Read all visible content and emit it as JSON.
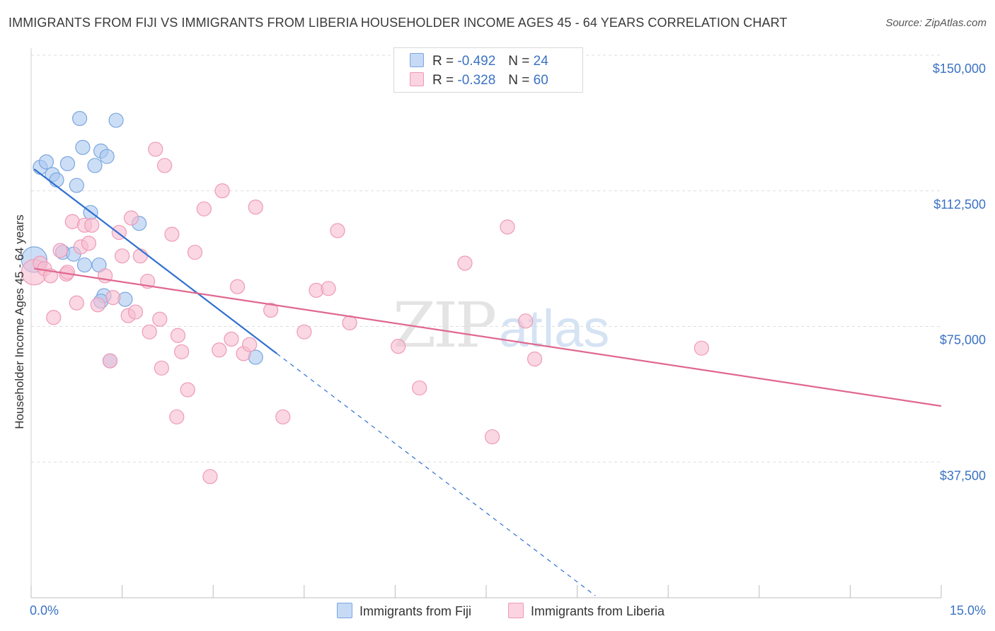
{
  "header": {
    "title": "IMMIGRANTS FROM FIJI VS IMMIGRANTS FROM LIBERIA HOUSEHOLDER INCOME AGES 45 - 64 YEARS CORRELATION CHART",
    "source": "Source: ZipAtlas.com"
  },
  "watermark": {
    "zip": "ZIP",
    "atlas": "atlas"
  },
  "legend": {
    "fiji": {
      "r_label": "R =",
      "r_value": "-0.492",
      "n_label": "N =",
      "n_value": "24"
    },
    "liberia": {
      "r_label": "R =",
      "r_value": "-0.328",
      "n_label": "N =",
      "n_value": "60"
    }
  },
  "colors": {
    "fiji_fill": "#aac8f0",
    "fiji_stroke": "#7aa6dd",
    "fiji_line": "#2f6fd0",
    "liberia_fill": "#f7bcd0",
    "liberia_stroke": "#ee9ab6",
    "liberia_line": "#e0678f",
    "tick_label": "#3b72c4",
    "grid": "#dddddd"
  },
  "chart_data": {
    "type": "scatter",
    "xlabel": "",
    "ylabel": "Householder Income Ages 45 - 64 years",
    "xlim": [
      0,
      15
    ],
    "ylim": [
      0,
      150000
    ],
    "x_tick_labels": [
      {
        "value": 0,
        "label": "0.0%"
      },
      {
        "value": 15,
        "label": "15.0%"
      }
    ],
    "y_ticks": [
      {
        "value": 37500,
        "label": "$37,500"
      },
      {
        "value": 75000,
        "label": "$75,000"
      },
      {
        "value": 112500,
        "label": "$112,500"
      },
      {
        "value": 150000,
        "label": "$150,000"
      }
    ],
    "grid": true,
    "legend_position": "top-center",
    "series": [
      {
        "name": "Immigrants from Fiji",
        "points": [
          [
            0.05,
            93500,
            18
          ],
          [
            0.15,
            119000,
            10
          ],
          [
            0.25,
            120500,
            10
          ],
          [
            0.35,
            117000,
            10
          ],
          [
            0.42,
            115500,
            10
          ],
          [
            0.6,
            120000,
            10
          ],
          [
            0.52,
            95500,
            10
          ],
          [
            0.7,
            95000,
            10
          ],
          [
            0.75,
            114000,
            10
          ],
          [
            0.85,
            124500,
            10
          ],
          [
            0.8,
            132500,
            10
          ],
          [
            0.98,
            106500,
            10
          ],
          [
            1.05,
            119500,
            10
          ],
          [
            1.15,
            123500,
            10
          ],
          [
            1.25,
            122000,
            10
          ],
          [
            1.4,
            132000,
            10
          ],
          [
            1.2,
            83500,
            10
          ],
          [
            1.55,
            82500,
            10
          ],
          [
            1.15,
            82000,
            10
          ],
          [
            1.12,
            92000,
            10
          ],
          [
            0.88,
            92000,
            10
          ],
          [
            1.78,
            103500,
            10
          ],
          [
            1.3,
            65500,
            10
          ],
          [
            3.7,
            66500,
            10
          ]
        ],
        "trend": {
          "x0": 0.05,
          "y0": 118500,
          "x1": 4.05,
          "y1": 67500,
          "dash_to_x": 9.3
        }
      },
      {
        "name": "Immigrants from Liberia",
        "points": [
          [
            0.05,
            90000,
            18
          ],
          [
            0.15,
            92500,
            10
          ],
          [
            0.22,
            91000,
            10
          ],
          [
            0.32,
            89000,
            10
          ],
          [
            0.37,
            77500,
            10
          ],
          [
            0.48,
            96000,
            10
          ],
          [
            0.58,
            89500,
            10
          ],
          [
            0.6,
            90000,
            10
          ],
          [
            0.68,
            104000,
            10
          ],
          [
            0.75,
            81500,
            10
          ],
          [
            0.82,
            97000,
            10
          ],
          [
            0.88,
            103000,
            10
          ],
          [
            0.95,
            98000,
            10
          ],
          [
            1.0,
            103000,
            10
          ],
          [
            1.1,
            81000,
            10
          ],
          [
            1.22,
            89000,
            10
          ],
          [
            1.35,
            83000,
            10
          ],
          [
            1.45,
            101000,
            10
          ],
          [
            1.5,
            94500,
            10
          ],
          [
            1.6,
            78000,
            10
          ],
          [
            1.65,
            105000,
            10
          ],
          [
            1.72,
            79000,
            10
          ],
          [
            1.8,
            94500,
            10
          ],
          [
            1.92,
            87500,
            10
          ],
          [
            1.95,
            73500,
            10
          ],
          [
            2.05,
            124000,
            10
          ],
          [
            2.12,
            77000,
            10
          ],
          [
            2.2,
            119500,
            10
          ],
          [
            2.32,
            100500,
            10
          ],
          [
            2.42,
            72500,
            10
          ],
          [
            2.48,
            68000,
            10
          ],
          [
            2.58,
            57500,
            10
          ],
          [
            2.7,
            95500,
            10
          ],
          [
            2.85,
            107500,
            10
          ],
          [
            2.95,
            33500,
            10
          ],
          [
            3.1,
            68500,
            10
          ],
          [
            3.15,
            112500,
            10
          ],
          [
            3.3,
            71500,
            10
          ],
          [
            3.4,
            86000,
            10
          ],
          [
            3.5,
            67500,
            10
          ],
          [
            3.6,
            70000,
            10
          ],
          [
            3.7,
            108000,
            10
          ],
          [
            3.95,
            79500,
            10
          ],
          [
            4.15,
            50000,
            10
          ],
          [
            4.5,
            73500,
            10
          ],
          [
            4.7,
            85000,
            10
          ],
          [
            4.9,
            85500,
            10
          ],
          [
            5.05,
            101500,
            10
          ],
          [
            5.25,
            76000,
            10
          ],
          [
            6.05,
            69500,
            10
          ],
          [
            6.4,
            58000,
            10
          ],
          [
            7.15,
            92500,
            10
          ],
          [
            7.6,
            44500,
            10
          ],
          [
            7.85,
            102500,
            10
          ],
          [
            8.15,
            76500,
            10
          ],
          [
            8.3,
            66000,
            10
          ],
          [
            11.05,
            69000,
            10
          ],
          [
            1.3,
            65500,
            10
          ],
          [
            2.15,
            63500,
            10
          ],
          [
            2.4,
            50000,
            10
          ]
        ],
        "trend": {
          "x0": 0.05,
          "y0": 91000,
          "x1": 15,
          "y1": 53000
        }
      }
    ]
  }
}
